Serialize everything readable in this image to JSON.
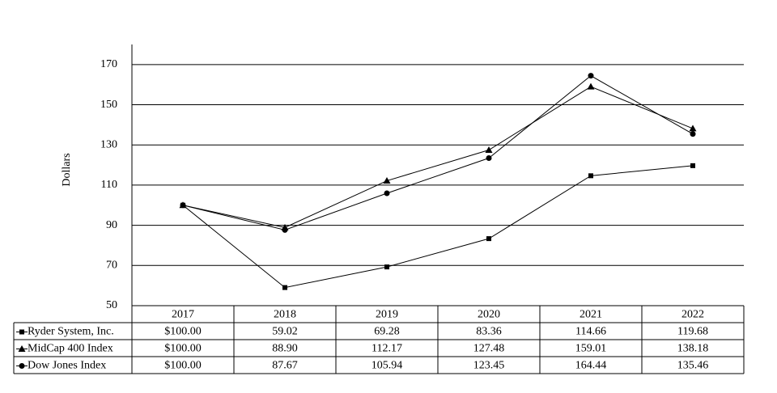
{
  "chart_data": {
    "type": "line",
    "y_label": "Dollars",
    "categories": [
      "2017",
      "2018",
      "2019",
      "2020",
      "2021",
      "2022"
    ],
    "series": [
      {
        "name": "Ryder System, Inc.",
        "color": "#000000",
        "marker": "square",
        "values": [
          100,
          59.02,
          69.28,
          83.36,
          114.66,
          119.68
        ],
        "value_labels": [
          "$100.00",
          "59.02",
          "69.28",
          "83.36",
          "114.66",
          "119.68"
        ]
      },
      {
        "name": "MidCap 400 Index",
        "color": "#000000",
        "marker": "triangle",
        "values": [
          100,
          88.9,
          112.17,
          127.48,
          159.01,
          138.18
        ],
        "value_labels": [
          "$100.00",
          "88.90",
          "112.17",
          "127.48",
          "159.01",
          "138.18"
        ]
      },
      {
        "name": "Dow Jones Index",
        "color": "#000000",
        "marker": "circle",
        "values": [
          100,
          87.67,
          105.94,
          123.45,
          164.44,
          135.46
        ],
        "value_labels": [
          "$100.00",
          "87.67",
          "105.94",
          "123.45",
          "164.44",
          "135.46"
        ]
      }
    ],
    "ylim": [
      50,
      180
    ],
    "yticks": [
      50,
      70,
      90,
      110,
      130,
      150,
      170
    ],
    "grid": true
  }
}
